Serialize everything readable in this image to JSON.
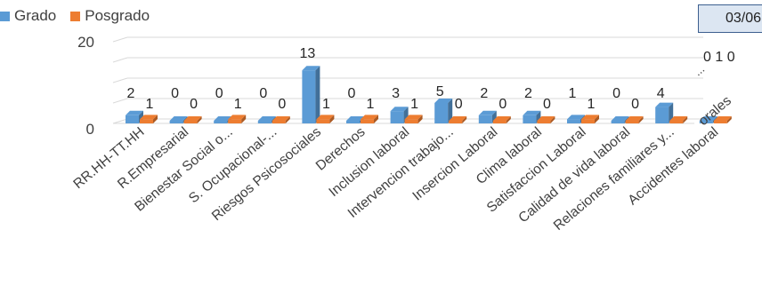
{
  "date_box_text": "03/06",
  "colors": {
    "grado": "#5b9bd5",
    "posgrado": "#ed7d31",
    "grid": "#d9d9d9",
    "text": "#404040"
  },
  "overflow_labels": {
    "right_values": "0  1 0",
    "ellipsis": "...",
    "cut_category": "orales"
  },
  "chart_data": {
    "type": "bar",
    "ylim": [
      0,
      20
    ],
    "y_ticks": [
      "20",
      "0"
    ],
    "grid": true,
    "legend_position": "top-left",
    "categories": [
      "RR.HH-TT.HH",
      "R.Empresarial",
      "Bienestar Social o...",
      "S. Ocupacional-...",
      "Riesgos Psicosociales",
      "Derechos",
      "Inclusion laboral",
      "Intervencion trabajo...",
      "Insercion Laboral",
      "Clima laboral",
      "Satisfaccion Laboral",
      "Calidad de vida laboral",
      "Relaciones familiares y...",
      "Accidentes laboral"
    ],
    "series": [
      {
        "name": "Grado",
        "values": [
          2,
          0,
          0,
          0,
          13,
          0,
          3,
          5,
          2,
          2,
          1,
          0,
          4,
          0
        ]
      },
      {
        "name": "Posgrado",
        "values": [
          1,
          0,
          1,
          0,
          1,
          1,
          1,
          0,
          0,
          0,
          1,
          0,
          0,
          0
        ]
      }
    ],
    "value_labels": [
      [
        "2",
        "0",
        "0",
        "0",
        "13",
        "0",
        "3",
        "5",
        "2",
        "2",
        "1",
        "0",
        "4",
        ""
      ],
      [
        "1",
        "0",
        "1",
        "0",
        "1",
        "1",
        "1",
        "0",
        "0",
        "0",
        "1",
        "0",
        "",
        ""
      ]
    ]
  }
}
